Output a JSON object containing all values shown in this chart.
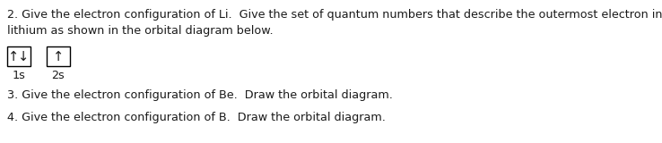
{
  "line1": "2. Give the electron configuration of Li.  Give the set of quantum numbers that describe the outermost electron in",
  "line2": "lithium as shown in the orbital diagram below.",
  "line3": "3. Give the electron configuration of Be.  Draw the orbital diagram.",
  "line4": "4. Give the electron configuration of B.  Draw the orbital diagram.",
  "box1_label": "1s",
  "box1_content_up": "↑",
  "box1_content_down": "↓",
  "box2_label": "2s",
  "box2_content": "↑",
  "background_color": "#ffffff",
  "text_color": "#1a1a1a",
  "fontsize_main": 9.2,
  "fontsize_label": 9.2,
  "fontsize_arrow": 10.5
}
